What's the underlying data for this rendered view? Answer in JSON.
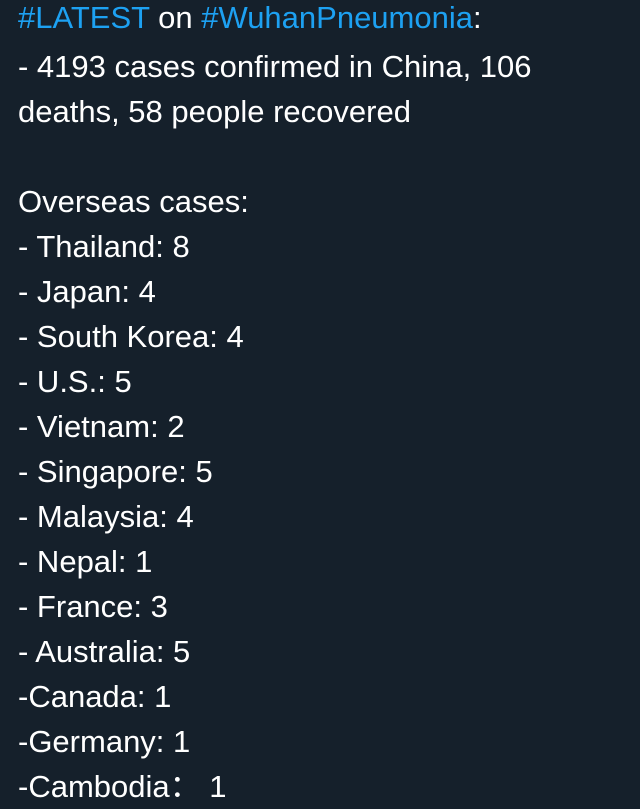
{
  "tweet": {
    "hashtag_latest": "#LATEST",
    "on_word": " on ",
    "hashtag_topic": "#WuhanPneumonia",
    "colon": ":",
    "stats_line1": "- 4193 cases confirmed in China, 106",
    "stats_line2": "deaths, 58 people recovered",
    "overseas_heading": "Overseas cases:",
    "items": [
      "- Thailand: 8",
      "- Japan: 4",
      "- South Korea: 4",
      "- U.S.: 5",
      "- Vietnam: 2",
      "- Singapore: 5",
      "- Malaysia: 4",
      "- Nepal: 1",
      "- France: 3",
      "- Australia: 5",
      "-Canada: 1",
      "-Germany: 1",
      "-Cambodia： 1"
    ]
  },
  "colors": {
    "background": "#15202b",
    "text": "#ffffff",
    "hashtag": "#1da1f2"
  }
}
